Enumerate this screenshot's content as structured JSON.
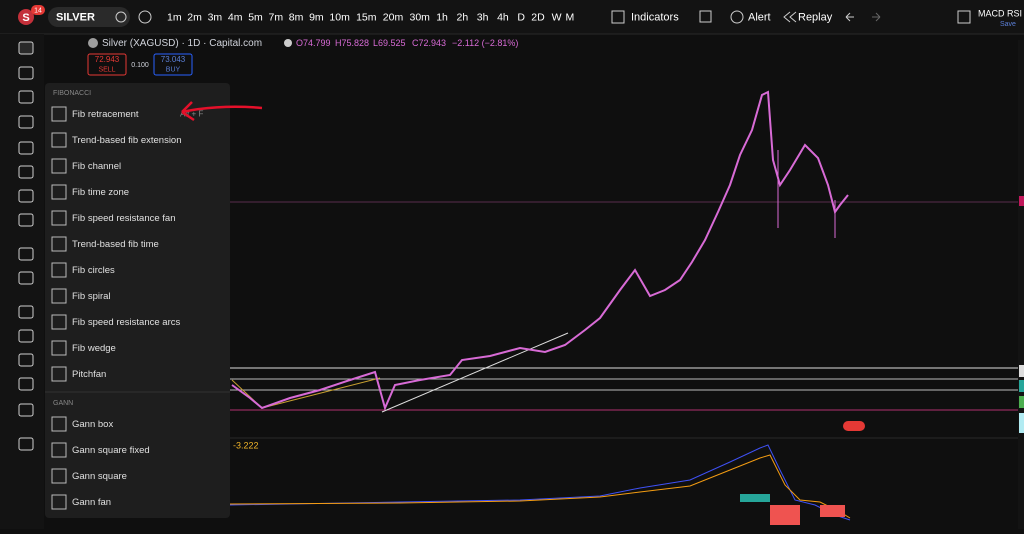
{
  "toolbar": {
    "avatar": "S",
    "badge": "14",
    "symbol": "SILVER",
    "intervals": [
      "1m",
      "2m",
      "3m",
      "4m",
      "5m",
      "7m",
      "8m",
      "9m",
      "10m",
      "15m",
      "20m",
      "30m",
      "1h",
      "2h",
      "3h",
      "4h",
      "D",
      "2D",
      "W",
      "M"
    ],
    "indicators": "Indicators",
    "alert": "Alert",
    "replay": "Replay",
    "layout_name": "MACD RSI V",
    "save": "Save"
  },
  "legend": {
    "title": "Silver (XAGUSD) · 1D · Capital.com",
    "open": "O74.799",
    "high": "H75.828",
    "low": "L69.525",
    "close": "C72.943",
    "change": "−2.112 (−2.81%)",
    "sell_price": "72.943",
    "sell": "SELL",
    "spread": "0.100",
    "buy_price": "73.043",
    "buy": "BUY"
  },
  "menu": {
    "shortcut": "Alt + F",
    "sections": [
      {
        "title": "FIBONACCI",
        "items": [
          "Fib retracement",
          "Trend-based fib extension",
          "Fib channel",
          "Fib time zone",
          "Fib speed resistance fan",
          "Trend-based fib time",
          "Fib circles",
          "Fib spiral",
          "Fib speed resistance arcs",
          "Fib wedge",
          "Pitchfan"
        ]
      },
      {
        "title": "GANN",
        "items": [
          "Gann box",
          "Gann square fixed",
          "Gann square",
          "Gann fan"
        ]
      }
    ]
  },
  "chart": {
    "indicator_value": "-3.222"
  }
}
